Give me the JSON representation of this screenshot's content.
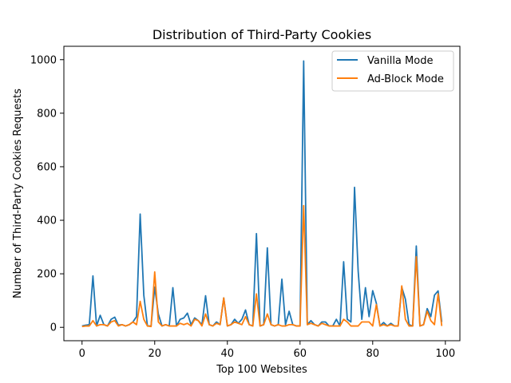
{
  "chart_data": {
    "type": "line",
    "title": "Distribution of Third-Party Cookies",
    "xlabel": "Top 100 Websites",
    "ylabel": "Number of Third-Party Cookies Requests",
    "xlim": [
      -5,
      104
    ],
    "ylim": [
      -50,
      1050
    ],
    "xticks": [
      0,
      20,
      40,
      60,
      80,
      100
    ],
    "yticks": [
      0,
      200,
      400,
      600,
      800,
      1000
    ],
    "grid": false,
    "legend_position": "top-right",
    "x": [
      0,
      1,
      2,
      3,
      4,
      5,
      6,
      7,
      8,
      9,
      10,
      11,
      12,
      13,
      14,
      15,
      16,
      17,
      18,
      19,
      20,
      21,
      22,
      23,
      24,
      25,
      26,
      27,
      28,
      29,
      30,
      31,
      32,
      33,
      34,
      35,
      36,
      37,
      38,
      39,
      40,
      41,
      42,
      43,
      44,
      45,
      46,
      47,
      48,
      49,
      50,
      51,
      52,
      53,
      54,
      55,
      56,
      57,
      58,
      59,
      60,
      61,
      62,
      63,
      64,
      65,
      66,
      67,
      68,
      69,
      70,
      71,
      72,
      73,
      74,
      75,
      76,
      77,
      78,
      79,
      80,
      81,
      82,
      83,
      84,
      85,
      86,
      87,
      88,
      89,
      90,
      91,
      92,
      93,
      94,
      95,
      96,
      97,
      98,
      99
    ],
    "series": [
      {
        "name": "Vanilla Mode",
        "color": "#1f77b4",
        "values": [
          5,
          8,
          10,
          192,
          5,
          45,
          10,
          5,
          30,
          38,
          8,
          10,
          5,
          10,
          20,
          40,
          423,
          120,
          5,
          5,
          150,
          50,
          5,
          10,
          5,
          148,
          5,
          30,
          35,
          53,
          10,
          35,
          25,
          10,
          118,
          10,
          5,
          20,
          10,
          110,
          5,
          10,
          30,
          15,
          30,
          65,
          10,
          5,
          350,
          5,
          10,
          297,
          10,
          5,
          10,
          180,
          10,
          60,
          10,
          5,
          5,
          995,
          10,
          25,
          10,
          5,
          20,
          20,
          5,
          5,
          30,
          5,
          245,
          30,
          20,
          523,
          210,
          30,
          148,
          40,
          137,
          90,
          5,
          18,
          5,
          15,
          5,
          5,
          150,
          105,
          10,
          5,
          304,
          5,
          10,
          70,
          40,
          120,
          136,
          20
        ]
      },
      {
        "name": "Ad-Block Mode",
        "color": "#ff7f0e",
        "values": [
          3,
          5,
          5,
          25,
          5,
          10,
          10,
          5,
          20,
          25,
          5,
          10,
          5,
          10,
          20,
          10,
          97,
          30,
          5,
          3,
          207,
          20,
          5,
          10,
          5,
          5,
          5,
          15,
          10,
          15,
          5,
          30,
          25,
          5,
          50,
          10,
          5,
          15,
          10,
          110,
          5,
          10,
          20,
          15,
          10,
          40,
          10,
          5,
          125,
          5,
          10,
          50,
          10,
          5,
          10,
          5,
          5,
          10,
          10,
          5,
          5,
          455,
          10,
          15,
          10,
          5,
          15,
          10,
          5,
          5,
          5,
          5,
          30,
          20,
          5,
          5,
          5,
          20,
          20,
          20,
          5,
          85,
          5,
          10,
          5,
          10,
          5,
          5,
          155,
          30,
          5,
          5,
          264,
          5,
          10,
          60,
          25,
          10,
          125,
          5
        ]
      }
    ]
  }
}
